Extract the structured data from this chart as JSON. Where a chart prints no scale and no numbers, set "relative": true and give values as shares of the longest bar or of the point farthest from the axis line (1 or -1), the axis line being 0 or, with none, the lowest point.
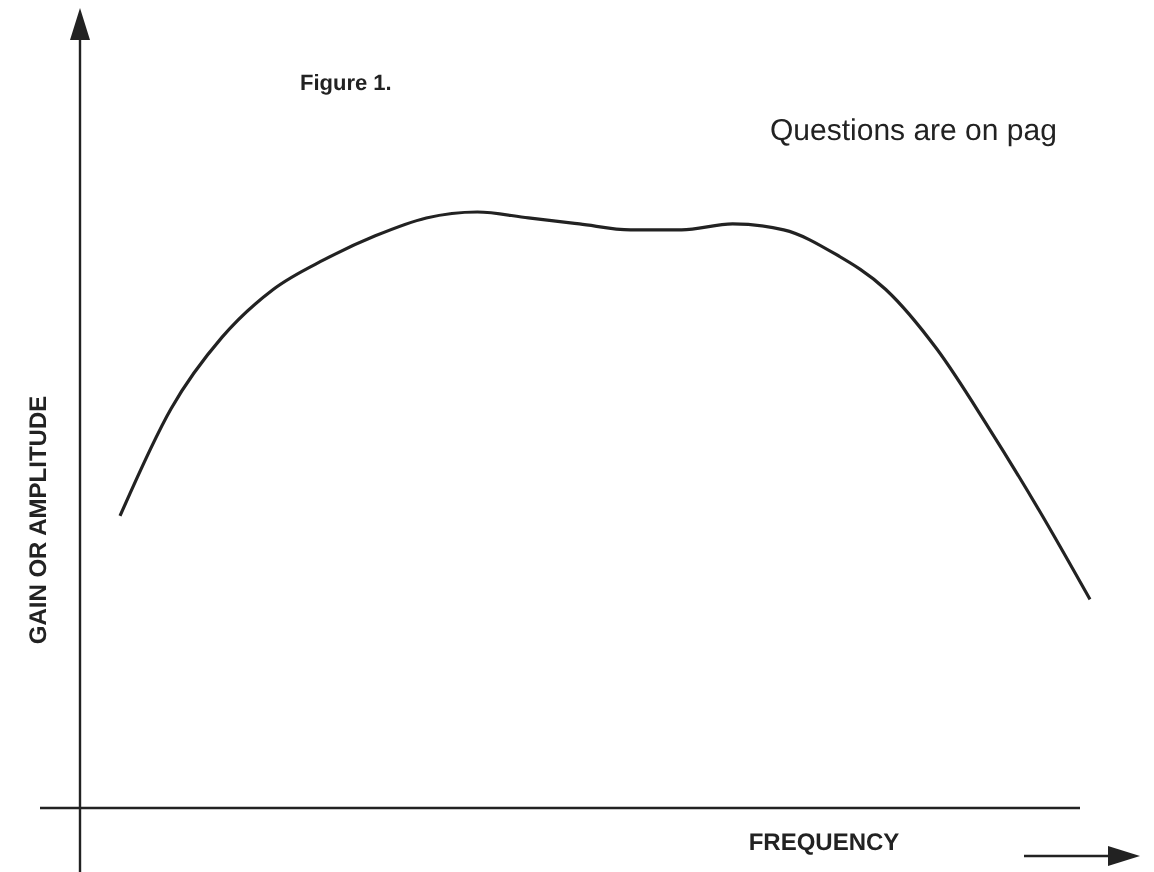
{
  "chart_data": {
    "type": "line",
    "relative": true,
    "xlabel": "FREQUENCY",
    "ylabel": "GAIN OR AMPLITUDE",
    "annotations": [
      "Figure 1.",
      "Questions are on pag"
    ],
    "categories": [
      null,
      null,
      null,
      null,
      null,
      null,
      null,
      null,
      null,
      null,
      null,
      null,
      null,
      null,
      null,
      null,
      null,
      null,
      null,
      null
    ],
    "series": [
      {
        "color": "#222222",
        "values": [
          0.49,
          0.67,
          0.79,
          0.87,
          0.92,
          0.96,
          0.99,
          1,
          0.99,
          0.98,
          0.97,
          0.97,
          0.98,
          0.97,
          0.93,
          0.87,
          0.77,
          0.64,
          0.5,
          0.35
        ]
      }
    ],
    "line_style": "solid"
  }
}
